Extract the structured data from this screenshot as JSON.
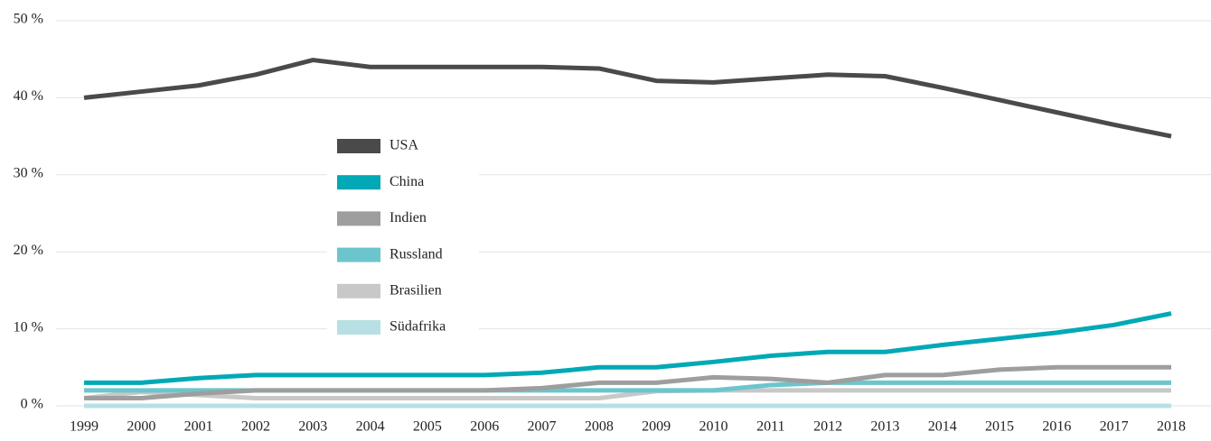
{
  "chart_data": {
    "type": "line",
    "categories": [
      "1999",
      "2000",
      "2001",
      "2002",
      "2003",
      "2004",
      "2005",
      "2006",
      "2007",
      "2008",
      "2009",
      "2010",
      "2011",
      "2012",
      "2013",
      "2014",
      "2015",
      "2016",
      "2017",
      "2018"
    ],
    "series": [
      {
        "name": "USA",
        "color": "#4a4a4a",
        "values": [
          40,
          40.8,
          41.6,
          43,
          44.9,
          44,
          44,
          44,
          44,
          43.8,
          42.2,
          42,
          42.5,
          43,
          42.8,
          41.3,
          39.7,
          38.1,
          36.5,
          35
        ]
      },
      {
        "name": "China",
        "color": "#00a9b5",
        "values": [
          3,
          3,
          3.6,
          4,
          4,
          4,
          4,
          4,
          4.3,
          5,
          5,
          5.7,
          6.5,
          7,
          7,
          7.9,
          8.7,
          9.5,
          10.5,
          12
        ]
      },
      {
        "name": "Indien",
        "color": "#9e9e9e",
        "values": [
          1,
          1,
          1.6,
          2,
          2,
          2,
          2,
          2,
          2.3,
          3,
          3,
          3.7,
          3.5,
          3,
          4,
          4,
          4.7,
          5,
          5,
          5
        ]
      },
      {
        "name": "Russland",
        "color": "#6cc5cc",
        "values": [
          2,
          2,
          2,
          2,
          2,
          2,
          2,
          2,
          2,
          2,
          2,
          2,
          2.7,
          3,
          3,
          3,
          3,
          3,
          3,
          3
        ]
      },
      {
        "name": "Brasilien",
        "color": "#c8c8c8",
        "values": [
          1,
          1.8,
          1.4,
          1,
          1,
          1,
          1,
          1,
          1,
          1,
          1.9,
          2,
          2,
          2,
          2,
          2,
          2,
          2,
          2,
          2
        ]
      },
      {
        "name": "Südafrika",
        "color": "#b8e0e4",
        "values": [
          0,
          0,
          0,
          0,
          0,
          0,
          0,
          0,
          0,
          0,
          0,
          0,
          0,
          0,
          0,
          0,
          0,
          0,
          0,
          0
        ]
      }
    ],
    "ylim": [
      0,
      50
    ],
    "yticks": [
      {
        "value": 0,
        "label": "0 %"
      },
      {
        "value": 10,
        "label": "10 %"
      },
      {
        "value": 20,
        "label": "20 %"
      },
      {
        "value": 30,
        "label": "30 %"
      },
      {
        "value": 40,
        "label": "40 %"
      },
      {
        "value": 50,
        "label": "50 %"
      }
    ],
    "grid": true
  }
}
